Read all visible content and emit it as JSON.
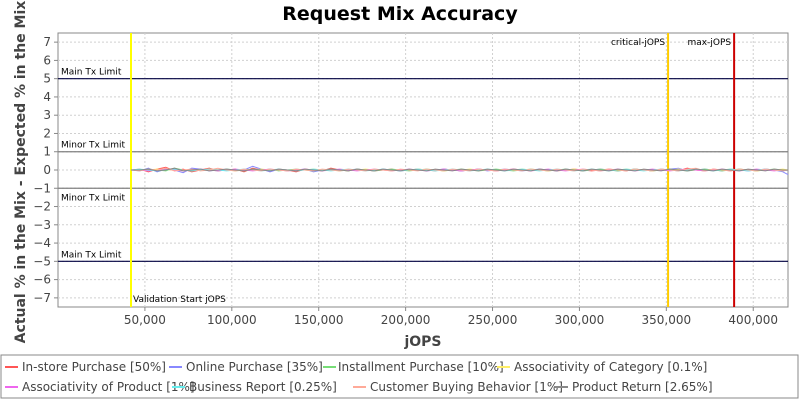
{
  "chart_data": {
    "type": "line",
    "title": "Request Mix Accuracy",
    "xlabel": "jOPS",
    "ylabel": "Actual % in the Mix - Expected % in the Mix",
    "xlim": [
      0,
      420000
    ],
    "ylim": [
      -7.5,
      7.5
    ],
    "x_ticks": [
      50000,
      100000,
      150000,
      200000,
      250000,
      300000,
      350000,
      400000
    ],
    "x_tick_labels": [
      "50,000",
      "100,000",
      "150,000",
      "200,000",
      "250,000",
      "300,000",
      "350,000",
      "400,000"
    ],
    "y_ticks": [
      7,
      6,
      5,
      4,
      3,
      2,
      1,
      0,
      -1,
      -2,
      -3,
      -4,
      -5,
      -6,
      -7
    ],
    "y_tick_labels": [
      "7",
      "6",
      "5",
      "4",
      "3",
      "2",
      "1",
      "0",
      "−1",
      "−2",
      "−3",
      "−4",
      "−5",
      "−6",
      "−7"
    ],
    "grid": true,
    "legend_position": "bottom",
    "h_lines": [
      {
        "y": 5,
        "label": "Main Tx Limit",
        "color": "#000040",
        "label_pos": "above"
      },
      {
        "y": 1,
        "label": "Minor Tx Limit",
        "color": "#808080",
        "label_pos": "above"
      },
      {
        "y": -1,
        "label": "Minor Tx Limit",
        "color": "#808080",
        "label_pos": "below"
      },
      {
        "y": -5,
        "label": "Main Tx Limit",
        "color": "#000040",
        "label_pos": "above"
      }
    ],
    "v_lines": [
      {
        "x": 42000,
        "label": "Validation Start jOPS",
        "color": "#ffff00",
        "label_pos": "bottom-right"
      },
      {
        "x": 351000,
        "label": "critical-jOPS",
        "color": "#ffcc00",
        "label_pos": "top-left"
      },
      {
        "x": 389000,
        "label": "max-jOPS",
        "color": "#cc0000",
        "label_pos": "top-left"
      }
    ],
    "x": [
      42000,
      47000,
      52000,
      57000,
      62000,
      67000,
      72000,
      77000,
      82000,
      87000,
      92000,
      97000,
      102000,
      107000,
      112000,
      117000,
      122000,
      127000,
      132000,
      137000,
      142000,
      147000,
      152000,
      157000,
      162000,
      167000,
      172000,
      177000,
      182000,
      187000,
      192000,
      197000,
      202000,
      207000,
      212000,
      217000,
      222000,
      227000,
      232000,
      237000,
      242000,
      247000,
      252000,
      257000,
      262000,
      267000,
      272000,
      277000,
      282000,
      287000,
      292000,
      297000,
      302000,
      307000,
      312000,
      317000,
      322000,
      327000,
      332000,
      337000,
      342000,
      347000,
      352000,
      357000,
      362000,
      367000,
      372000,
      377000,
      382000,
      387000,
      392000,
      397000,
      402000,
      407000,
      412000,
      417000,
      420000
    ],
    "series": [
      {
        "name": "In-store Purchase [50%]",
        "color": "#ff5555",
        "values": [
          0,
          0.05,
          -0.1,
          0.05,
          0.15,
          -0.05,
          0.05,
          -0.1,
          0.0,
          0.1,
          -0.05,
          0.0,
          0.05,
          -0.1,
          0.1,
          0.0,
          -0.05,
          0.05,
          0.0,
          -0.1,
          0.05,
          0.0,
          -0.05,
          0.1,
          0.0,
          -0.05,
          0.05,
          0.0,
          -0.05,
          0.0,
          0.05,
          -0.05,
          0.0,
          0.05,
          0.0,
          -0.05,
          0.05,
          0.0,
          -0.05,
          0.0,
          0.05,
          0.0,
          -0.05,
          0.0,
          0.05,
          0.0,
          -0.05,
          0.05,
          0.0,
          -0.05,
          0.0,
          0.05,
          0.0,
          -0.05,
          0.0,
          0.05,
          0.0,
          -0.05,
          0.05,
          0.0,
          -0.05,
          0.05,
          0.0,
          -0.05,
          0.1,
          0.0,
          -0.05,
          0.05,
          0.0,
          -0.05,
          0.05,
          0.0,
          -0.05,
          0.05,
          0.0,
          -0.05,
          0.0
        ]
      },
      {
        "name": "Online Purchase [35%]",
        "color": "#8888ff",
        "values": [
          0,
          -0.05,
          0.1,
          -0.1,
          0.05,
          0.0,
          -0.15,
          0.1,
          0.05,
          -0.05,
          0.0,
          0.05,
          -0.05,
          0.0,
          0.2,
          0.05,
          -0.1,
          0.05,
          -0.05,
          0.0,
          0.05,
          -0.1,
          0.0,
          0.05,
          -0.05,
          0.0,
          0.05,
          0.0,
          -0.05,
          0.05,
          0.0,
          -0.05,
          0.0,
          0.05,
          -0.05,
          0.0,
          0.05,
          0.0,
          -0.05,
          0.0,
          0.05,
          -0.05,
          0.0,
          0.05,
          0.0,
          -0.05,
          0.0,
          0.05,
          0.0,
          -0.05,
          0.05,
          0.0,
          -0.05,
          0.0,
          0.05,
          0.0,
          -0.05,
          0.0,
          0.05,
          0.0,
          -0.05,
          0.0,
          0.05,
          0.1,
          -0.05,
          0.0,
          0.05,
          0.0,
          -0.05,
          0.05,
          0.0,
          -0.05,
          0.0,
          0.05,
          0.0,
          -0.1,
          -0.25
        ]
      },
      {
        "name": "Installment Purchase [10%]",
        "color": "#77dd77",
        "values": [
          0,
          0.0,
          0.05,
          0.0,
          -0.05,
          0.1,
          0.0,
          -0.05,
          0.05,
          0.0,
          -0.05,
          0.05,
          0.0,
          -0.05,
          0.05,
          0.0,
          0.05,
          -0.05,
          0.0,
          0.05,
          0.0,
          -0.05,
          0.0,
          0.05,
          0.0,
          -0.05,
          0.05,
          0.0,
          -0.05,
          0.0,
          0.05,
          0.0,
          -0.05,
          0.0,
          0.05,
          0.0,
          -0.05,
          0.0,
          0.05,
          0.0,
          -0.05,
          0.0,
          0.05,
          0.0,
          -0.05,
          0.0,
          0.05,
          0.0,
          -0.05,
          0.0,
          0.05,
          0.0,
          -0.05,
          0.0,
          0.05,
          0.0,
          -0.05,
          0.0,
          0.05,
          0.0,
          -0.05,
          0.0,
          0.05,
          0.0,
          -0.05,
          0.0,
          0.05,
          0.0,
          -0.05,
          0.0,
          0.05,
          0.0,
          -0.05,
          0.0,
          0.05,
          0.0,
          0.0
        ]
      },
      {
        "name": "Associativity of Category [0.1%]",
        "color": "#ffee66",
        "values": [
          0,
          0.0,
          0.0,
          0.05,
          0.0,
          0.0,
          -0.05,
          0.0,
          0.0,
          0.05,
          0.0,
          0.0,
          -0.05,
          0.0,
          0.0,
          0.05,
          0.0,
          0.0,
          -0.05,
          0.0,
          0.0,
          0.05,
          0.0,
          0.0,
          -0.05,
          0.0,
          0.0,
          0.05,
          0.0,
          0.0,
          -0.05,
          0.0,
          0.0,
          0.05,
          0.0,
          0.0,
          -0.05,
          0.0,
          0.0,
          0.05,
          0.0,
          0.0,
          -0.05,
          0.0,
          0.0,
          0.05,
          0.0,
          0.0,
          -0.05,
          0.0,
          0.0,
          0.05,
          0.0,
          0.0,
          -0.05,
          0.0,
          0.0,
          0.05,
          0.0,
          0.0,
          -0.05,
          0.0,
          0.0,
          0.05,
          0.0,
          0.0,
          -0.05,
          0.0,
          0.0,
          0.05,
          0.0,
          0.0,
          -0.05,
          0.0,
          0.0,
          0.05,
          0.0
        ]
      },
      {
        "name": "Associativity of Product [1%]",
        "color": "#ee66ee",
        "values": [
          0,
          0.0,
          -0.05,
          0.0,
          0.05,
          0.0,
          -0.05,
          0.0,
          0.05,
          0.0,
          -0.05,
          0.0,
          0.05,
          0.0,
          -0.05,
          0.0,
          0.05,
          0.0,
          -0.05,
          0.0,
          0.05,
          0.0,
          -0.05,
          0.0,
          0.05,
          0.0,
          -0.05,
          0.0,
          0.05,
          0.0,
          -0.05,
          0.0,
          0.05,
          0.0,
          -0.05,
          0.0,
          0.05,
          0.0,
          -0.05,
          0.0,
          0.05,
          0.0,
          -0.05,
          0.0,
          0.05,
          0.0,
          -0.05,
          0.0,
          0.05,
          0.0,
          -0.05,
          0.0,
          0.05,
          0.0,
          -0.05,
          0.0,
          0.05,
          0.0,
          -0.05,
          0.0,
          0.05,
          0.0,
          -0.05,
          0.0,
          0.05,
          0.0,
          -0.05,
          0.0,
          0.05,
          0.0,
          -0.05,
          0.0,
          0.05,
          0.0,
          -0.05,
          0.0,
          0.0
        ]
      },
      {
        "name": "Business Report [0.25%]",
        "color": "#66eeee",
        "values": [
          0,
          0.05,
          0.0,
          -0.05,
          0.0,
          0.05,
          0.0,
          -0.05,
          0.0,
          0.05,
          0.0,
          -0.05,
          0.0,
          0.05,
          0.0,
          -0.05,
          0.0,
          0.05,
          0.0,
          -0.05,
          0.0,
          0.05,
          0.0,
          -0.05,
          0.0,
          0.05,
          0.0,
          -0.05,
          0.0,
          0.05,
          0.0,
          -0.05,
          0.0,
          0.05,
          0.0,
          -0.05,
          0.0,
          0.05,
          0.0,
          -0.05,
          0.0,
          0.05,
          0.0,
          -0.05,
          0.0,
          0.05,
          0.0,
          -0.05,
          0.0,
          0.05,
          0.0,
          -0.05,
          0.0,
          0.05,
          0.0,
          -0.05,
          0.0,
          0.05,
          0.0,
          -0.05,
          0.0,
          0.05,
          0.0,
          -0.05,
          0.0,
          0.05,
          0.0,
          -0.05,
          0.0,
          0.05,
          0.0,
          -0.05,
          0.0,
          0.05,
          0.0,
          -0.05,
          0.0
        ]
      },
      {
        "name": "Customer Buying Behavior [1%]",
        "color": "#ffaa99",
        "values": [
          0,
          -0.05,
          0.05,
          0.0,
          0.1,
          -0.05,
          0.0,
          0.05,
          -0.05,
          0.0,
          0.1,
          0.0,
          -0.05,
          0.05,
          0.0,
          -0.05,
          0.05,
          0.0,
          -0.05,
          0.05,
          0.0,
          -0.05,
          0.05,
          0.0,
          -0.05,
          0.05,
          0.0,
          -0.05,
          0.05,
          0.0,
          -0.05,
          0.05,
          0.0,
          -0.05,
          0.05,
          0.0,
          -0.05,
          0.05,
          0.0,
          -0.05,
          0.05,
          0.0,
          -0.05,
          0.05,
          0.0,
          -0.05,
          0.05,
          0.0,
          -0.05,
          0.05,
          0.0,
          -0.05,
          0.05,
          0.0,
          -0.05,
          0.05,
          0.0,
          -0.05,
          0.05,
          0.0,
          -0.05,
          0.05,
          0.0,
          -0.05,
          0.05,
          0.1,
          -0.05,
          0.05,
          0.0,
          -0.05,
          0.05,
          0.0,
          -0.05,
          0.05,
          0.0,
          -0.05,
          0.0
        ]
      },
      {
        "name": "Product Return [2.65%]",
        "color": "#888888",
        "values": [
          0,
          0.0,
          0.05,
          -0.05,
          0.0,
          0.1,
          -0.05,
          0.0,
          0.05,
          -0.05,
          0.0,
          0.05,
          0.0,
          -0.05,
          0.05,
          0.0,
          -0.05,
          0.05,
          0.0,
          -0.05,
          0.05,
          0.0,
          -0.05,
          0.05,
          0.0,
          -0.05,
          0.05,
          0.0,
          -0.05,
          0.05,
          0.0,
          -0.05,
          0.05,
          0.0,
          -0.05,
          0.05,
          0.0,
          -0.05,
          0.05,
          0.0,
          -0.05,
          0.05,
          0.0,
          -0.05,
          0.05,
          0.0,
          -0.05,
          0.05,
          0.0,
          -0.05,
          0.05,
          0.0,
          -0.05,
          0.05,
          0.0,
          -0.05,
          0.05,
          0.0,
          -0.05,
          0.05,
          0.0,
          -0.05,
          0.05,
          0.0,
          -0.05,
          0.05,
          0.0,
          -0.05,
          0.05,
          0.0,
          -0.05,
          0.05,
          0.0,
          -0.05,
          0.05,
          0.0,
          0.0
        ]
      }
    ]
  }
}
